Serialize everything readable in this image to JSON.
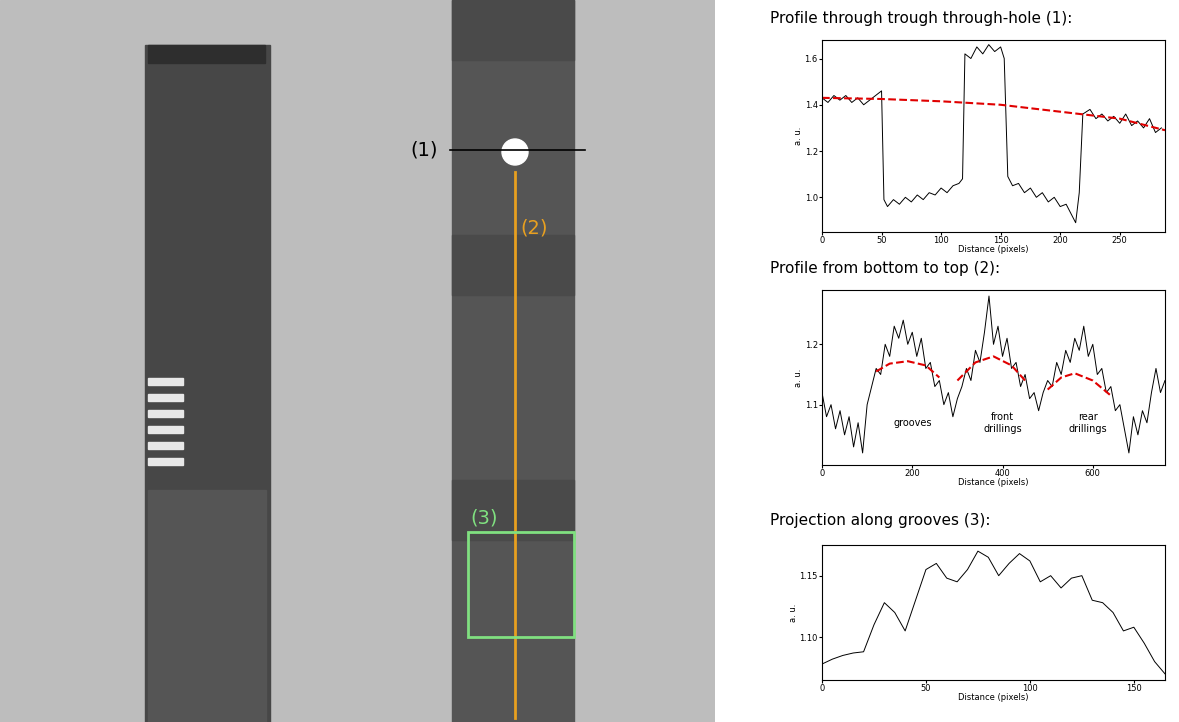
{
  "image": {
    "labels": [
      {
        "text": "(1)",
        "color": "#000000"
      },
      {
        "text": "(2)",
        "color": "#e8a020"
      },
      {
        "text": "(3)",
        "color": "#80e080"
      }
    ]
  },
  "chart_data": [
    {
      "type": "line",
      "title": "Profile through trough through-hole (1):",
      "x_label": "Distance (pixels)",
      "y_label": "a. u.",
      "xlim": [
        0,
        288
      ],
      "xticks": [
        0,
        50,
        100,
        150,
        200,
        250
      ],
      "ylim": [
        0.85,
        1.68
      ],
      "yticks": [
        1.0,
        1.2,
        1.4,
        1.6
      ],
      "series": [
        {
          "color": "#000000",
          "line_style": "solid",
          "x": [
            0,
            5,
            10,
            15,
            20,
            25,
            30,
            35,
            40,
            45,
            50,
            52,
            55,
            60,
            65,
            70,
            75,
            80,
            85,
            90,
            95,
            100,
            105,
            110,
            115,
            118,
            120,
            125,
            130,
            135,
            140,
            145,
            150,
            153,
            156,
            160,
            165,
            170,
            175,
            180,
            185,
            190,
            195,
            200,
            205,
            210,
            213,
            216,
            219,
            225,
            230,
            235,
            240,
            245,
            250,
            255,
            260,
            265,
            270,
            275,
            280,
            285
          ],
          "values": [
            1.43,
            1.41,
            1.44,
            1.42,
            1.44,
            1.41,
            1.43,
            1.4,
            1.42,
            1.44,
            1.46,
            0.99,
            0.96,
            0.99,
            0.97,
            1.0,
            0.98,
            1.01,
            0.99,
            1.02,
            1.01,
            1.04,
            1.02,
            1.05,
            1.06,
            1.08,
            1.62,
            1.6,
            1.65,
            1.62,
            1.66,
            1.63,
            1.65,
            1.6,
            1.09,
            1.05,
            1.06,
            1.02,
            1.04,
            1.0,
            1.02,
            0.98,
            1.0,
            0.96,
            0.97,
            0.92,
            0.89,
            1.02,
            1.36,
            1.38,
            1.34,
            1.36,
            1.33,
            1.35,
            1.32,
            1.36,
            1.31,
            1.33,
            1.3,
            1.34,
            1.28,
            1.3
          ]
        },
        {
          "color": "#e00000",
          "line_style": "dashed",
          "x": [
            0,
            50,
            100,
            150,
            200,
            250,
            288
          ],
          "values": [
            1.43,
            1.425,
            1.415,
            1.4,
            1.37,
            1.34,
            1.29
          ]
        }
      ]
    },
    {
      "type": "line",
      "title": "Profile from bottom to top (2):",
      "x_label": "Distance (pixels)",
      "y_label": "a. u.",
      "xlim": [
        0,
        760
      ],
      "xticks": [
        0,
        200,
        400,
        600
      ],
      "ylim": [
        1.0,
        1.29
      ],
      "yticks": [
        1.1,
        1.2
      ],
      "annotations": [
        {
          "text": "grooves",
          "x": 200,
          "y": 1.07
        },
        {
          "text": "front\ndrillings",
          "x": 400,
          "y": 1.07
        },
        {
          "text": "rear\ndrillings",
          "x": 590,
          "y": 1.07
        }
      ],
      "series": [
        {
          "color": "#000000",
          "line_style": "solid",
          "x": [
            0,
            10,
            20,
            30,
            40,
            50,
            60,
            70,
            80,
            90,
            100,
            110,
            120,
            130,
            140,
            150,
            160,
            170,
            180,
            190,
            200,
            210,
            220,
            230,
            240,
            250,
            260,
            270,
            280,
            290,
            300,
            310,
            320,
            330,
            340,
            350,
            360,
            370,
            380,
            390,
            400,
            410,
            420,
            430,
            440,
            450,
            460,
            470,
            480,
            490,
            500,
            510,
            520,
            530,
            540,
            550,
            560,
            570,
            580,
            590,
            600,
            610,
            620,
            630,
            640,
            650,
            660,
            670,
            680,
            690,
            700,
            710,
            720,
            730,
            740,
            750,
            760
          ],
          "values": [
            1.12,
            1.08,
            1.1,
            1.06,
            1.09,
            1.05,
            1.08,
            1.03,
            1.07,
            1.02,
            1.1,
            1.13,
            1.16,
            1.15,
            1.2,
            1.18,
            1.23,
            1.21,
            1.24,
            1.2,
            1.22,
            1.18,
            1.21,
            1.16,
            1.17,
            1.13,
            1.14,
            1.1,
            1.12,
            1.08,
            1.11,
            1.13,
            1.16,
            1.14,
            1.19,
            1.17,
            1.22,
            1.28,
            1.2,
            1.23,
            1.18,
            1.21,
            1.16,
            1.17,
            1.13,
            1.15,
            1.11,
            1.12,
            1.09,
            1.12,
            1.14,
            1.13,
            1.17,
            1.15,
            1.19,
            1.17,
            1.21,
            1.19,
            1.23,
            1.18,
            1.2,
            1.15,
            1.16,
            1.12,
            1.13,
            1.09,
            1.1,
            1.06,
            1.02,
            1.08,
            1.05,
            1.09,
            1.07,
            1.12,
            1.16,
            1.12,
            1.14
          ]
        },
        {
          "color": "#e00000",
          "line_style": "dashed",
          "x": [
            120,
            150,
            190,
            230,
            260,
            265,
            300,
            340,
            380,
            420,
            450,
            455,
            500,
            530,
            560,
            600,
            640
          ],
          "values": [
            1.155,
            1.168,
            1.172,
            1.165,
            1.145,
            null,
            1.14,
            1.17,
            1.18,
            1.165,
            1.14,
            null,
            1.125,
            1.145,
            1.152,
            1.14,
            1.115
          ]
        }
      ]
    },
    {
      "type": "line",
      "title": "Projection along grooves (3):",
      "x_label": "Distance (pixels)",
      "y_label": "a. u.",
      "xlim": [
        0,
        165
      ],
      "xticks": [
        0,
        50,
        100,
        150
      ],
      "ylim": [
        1.065,
        1.175
      ],
      "yticks": [
        {
          "value": 1.1,
          "label": "1.10"
        },
        {
          "value": 1.15,
          "label": "1.15"
        }
      ],
      "series": [
        {
          "color": "#000000",
          "line_style": "solid",
          "x": [
            0,
            5,
            10,
            15,
            20,
            25,
            30,
            35,
            40,
            45,
            50,
            55,
            60,
            65,
            70,
            75,
            80,
            85,
            90,
            95,
            100,
            105,
            110,
            115,
            120,
            125,
            130,
            135,
            140,
            145,
            150,
            155,
            160,
            165
          ],
          "values": [
            1.078,
            1.082,
            1.085,
            1.087,
            1.088,
            1.11,
            1.128,
            1.12,
            1.105,
            1.13,
            1.155,
            1.16,
            1.148,
            1.145,
            1.155,
            1.17,
            1.165,
            1.15,
            1.16,
            1.168,
            1.162,
            1.145,
            1.15,
            1.14,
            1.148,
            1.15,
            1.13,
            1.128,
            1.12,
            1.105,
            1.108,
            1.095,
            1.08,
            1.07
          ]
        }
      ]
    }
  ]
}
